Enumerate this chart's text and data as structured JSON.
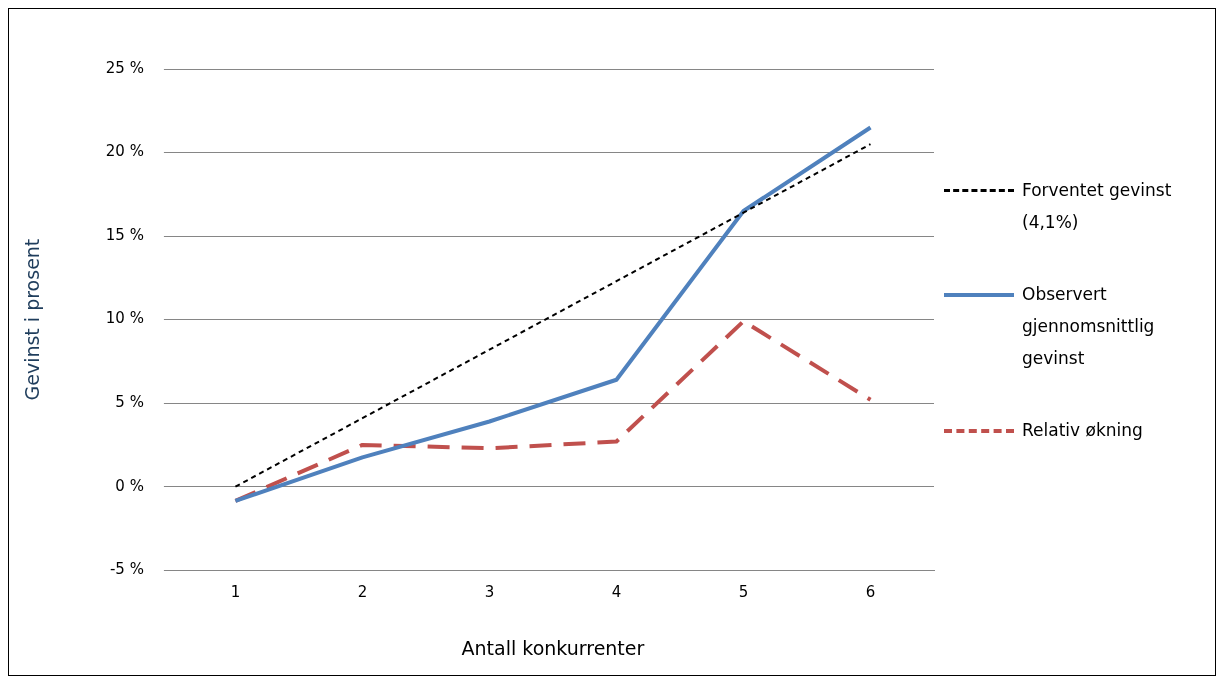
{
  "chart_data": {
    "type": "line",
    "xlabel": "Antall konkurrenter",
    "ylabel": "Gevinst i prosent",
    "categories": [
      "1",
      "2",
      "3",
      "4",
      "5",
      "6"
    ],
    "series": [
      {
        "name": "Forventet gevinst (4,1%)",
        "color": "#000000",
        "line_style": "dashed",
        "values": [
          0,
          4.1,
          8.2,
          12.3,
          16.4,
          20.5
        ]
      },
      {
        "name": "Observert gjennomsnittlig gevinst",
        "color": "#4f81bd",
        "line_style": "solid",
        "values": [
          -0.85,
          1.75,
          3.9,
          6.4,
          16.5,
          21.5
        ]
      },
      {
        "name": "Relativ økning",
        "color": "#c0504d",
        "line_style": "dashed",
        "values": [
          -0.85,
          2.5,
          2.3,
          2.7,
          9.9,
          5.2
        ]
      }
    ],
    "ylim": [
      -5,
      25
    ],
    "yticks": [
      {
        "value": -5,
        "label": "-5 %"
      },
      {
        "value": 0,
        "label": "0 %"
      },
      {
        "value": 5,
        "label": "5 %"
      },
      {
        "value": 10,
        "label": "10 %"
      },
      {
        "value": 15,
        "label": "15 %"
      },
      {
        "value": 20,
        "label": "20 %"
      },
      {
        "value": 25,
        "label": "25 %"
      }
    ],
    "grid": "y",
    "legend": "right",
    "marker": "none"
  }
}
